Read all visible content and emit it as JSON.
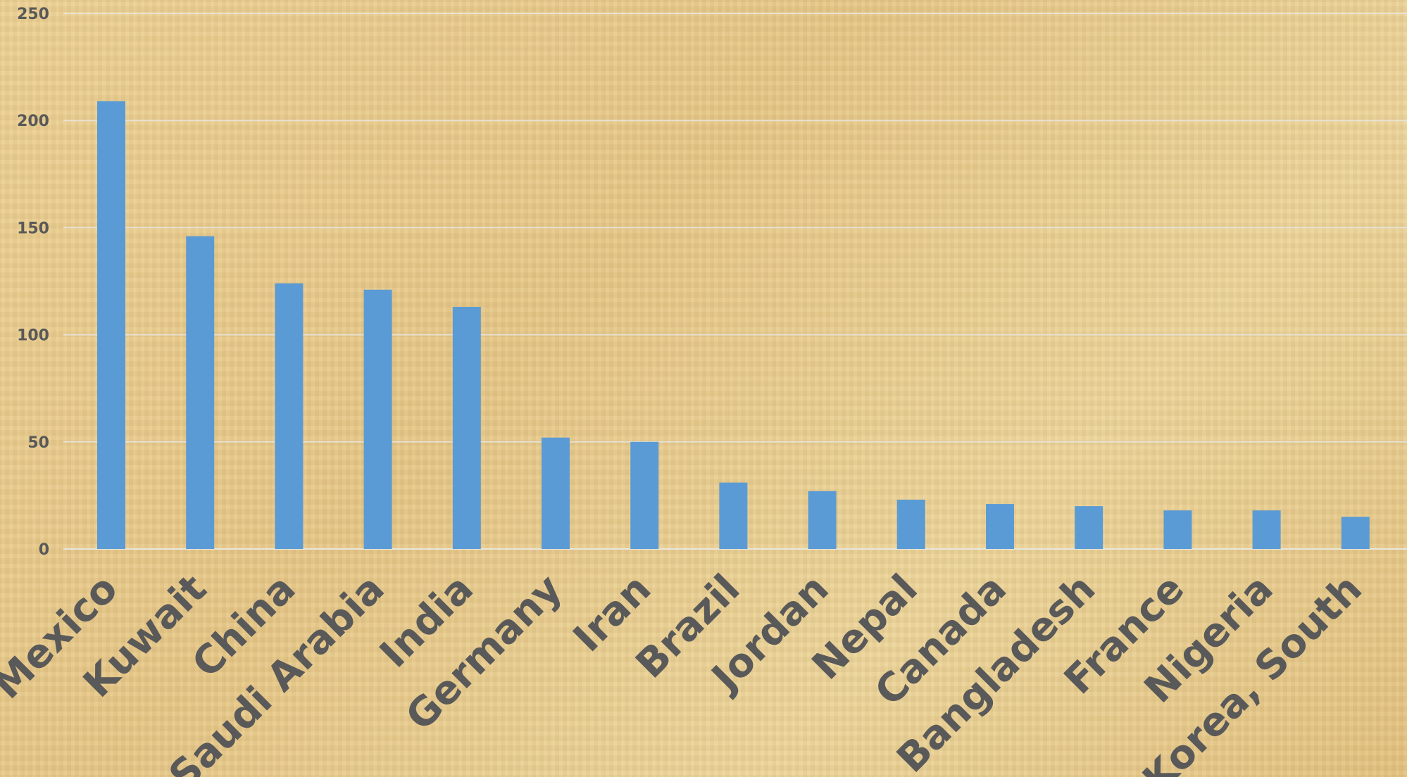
{
  "chart_data": {
    "type": "bar",
    "title": "",
    "xlabel": "",
    "ylabel": "",
    "categories": [
      "Mexico",
      "Kuwait",
      "China",
      "Saudi Arabia",
      "India",
      "Germany",
      "Iran",
      "Brazil",
      "Jordan",
      "Nepal",
      "Canada",
      "Bangladesh",
      "France",
      "Nigeria",
      "Korea, South"
    ],
    "values": [
      209,
      146,
      124,
      121,
      113,
      52,
      50,
      31,
      27,
      23,
      21,
      20,
      18,
      18,
      15
    ],
    "ylim": [
      0,
      250
    ],
    "yticks": [
      0,
      50,
      100,
      150,
      200,
      250
    ],
    "grid": true,
    "legend": "none",
    "bar_color": "#5b9bd5",
    "label_color": "#595959"
  }
}
